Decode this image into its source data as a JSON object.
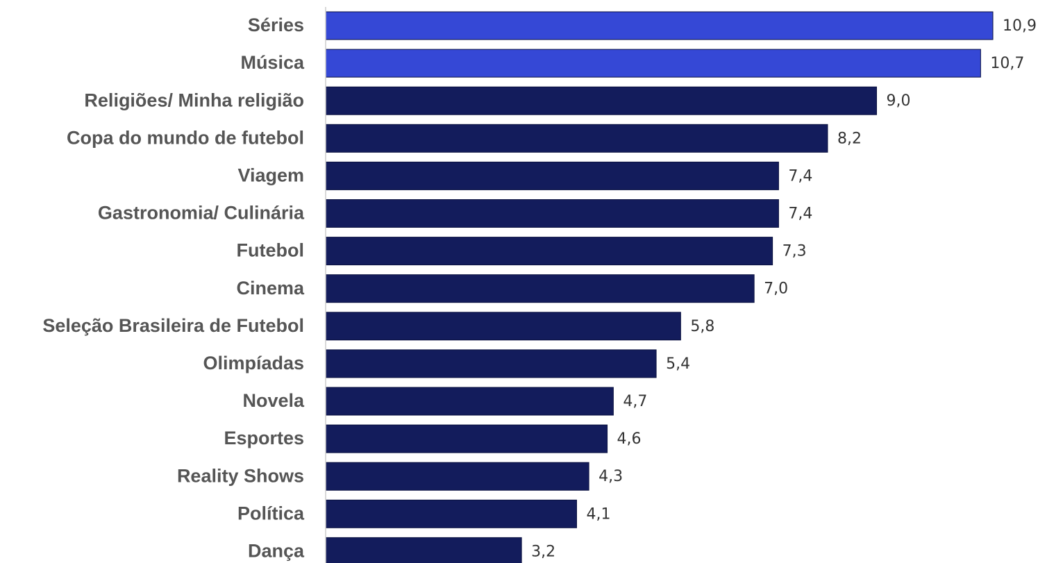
{
  "chart_data": {
    "type": "bar",
    "orientation": "horizontal",
    "title": "",
    "xlabel": "",
    "ylabel": "",
    "grid": false,
    "xlim": [
      0,
      10.9
    ],
    "categories": [
      "Séries",
      "Música",
      "Religiões/ Minha religião",
      "Copa do mundo de futebol",
      "Viagem",
      "Gastronomia/ Culinária",
      "Futebol",
      "Cinema",
      "Seleção Brasileira de Futebol",
      "Olimpíadas",
      "Novela",
      "Esportes",
      "Reality Shows",
      "Política",
      "Dança"
    ],
    "values": [
      10.9,
      10.7,
      9.0,
      8.2,
      7.4,
      7.4,
      7.3,
      7.0,
      5.8,
      5.4,
      4.7,
      4.6,
      4.3,
      4.1,
      3.2
    ],
    "value_labels": [
      "10,9",
      "10,7",
      "9,0",
      "8,2",
      "7,4",
      "7,4",
      "7,3",
      "7,0",
      "5,8",
      "5,4",
      "4,7",
      "4,6",
      "4,3",
      "4,1",
      "3,2"
    ],
    "highlighted": [
      true,
      true,
      false,
      false,
      false,
      false,
      false,
      false,
      false,
      false,
      false,
      false,
      false,
      false,
      false
    ],
    "colors": {
      "highlight": "#3548d6",
      "default": "#131c5c",
      "axis": "#cccccc"
    }
  }
}
